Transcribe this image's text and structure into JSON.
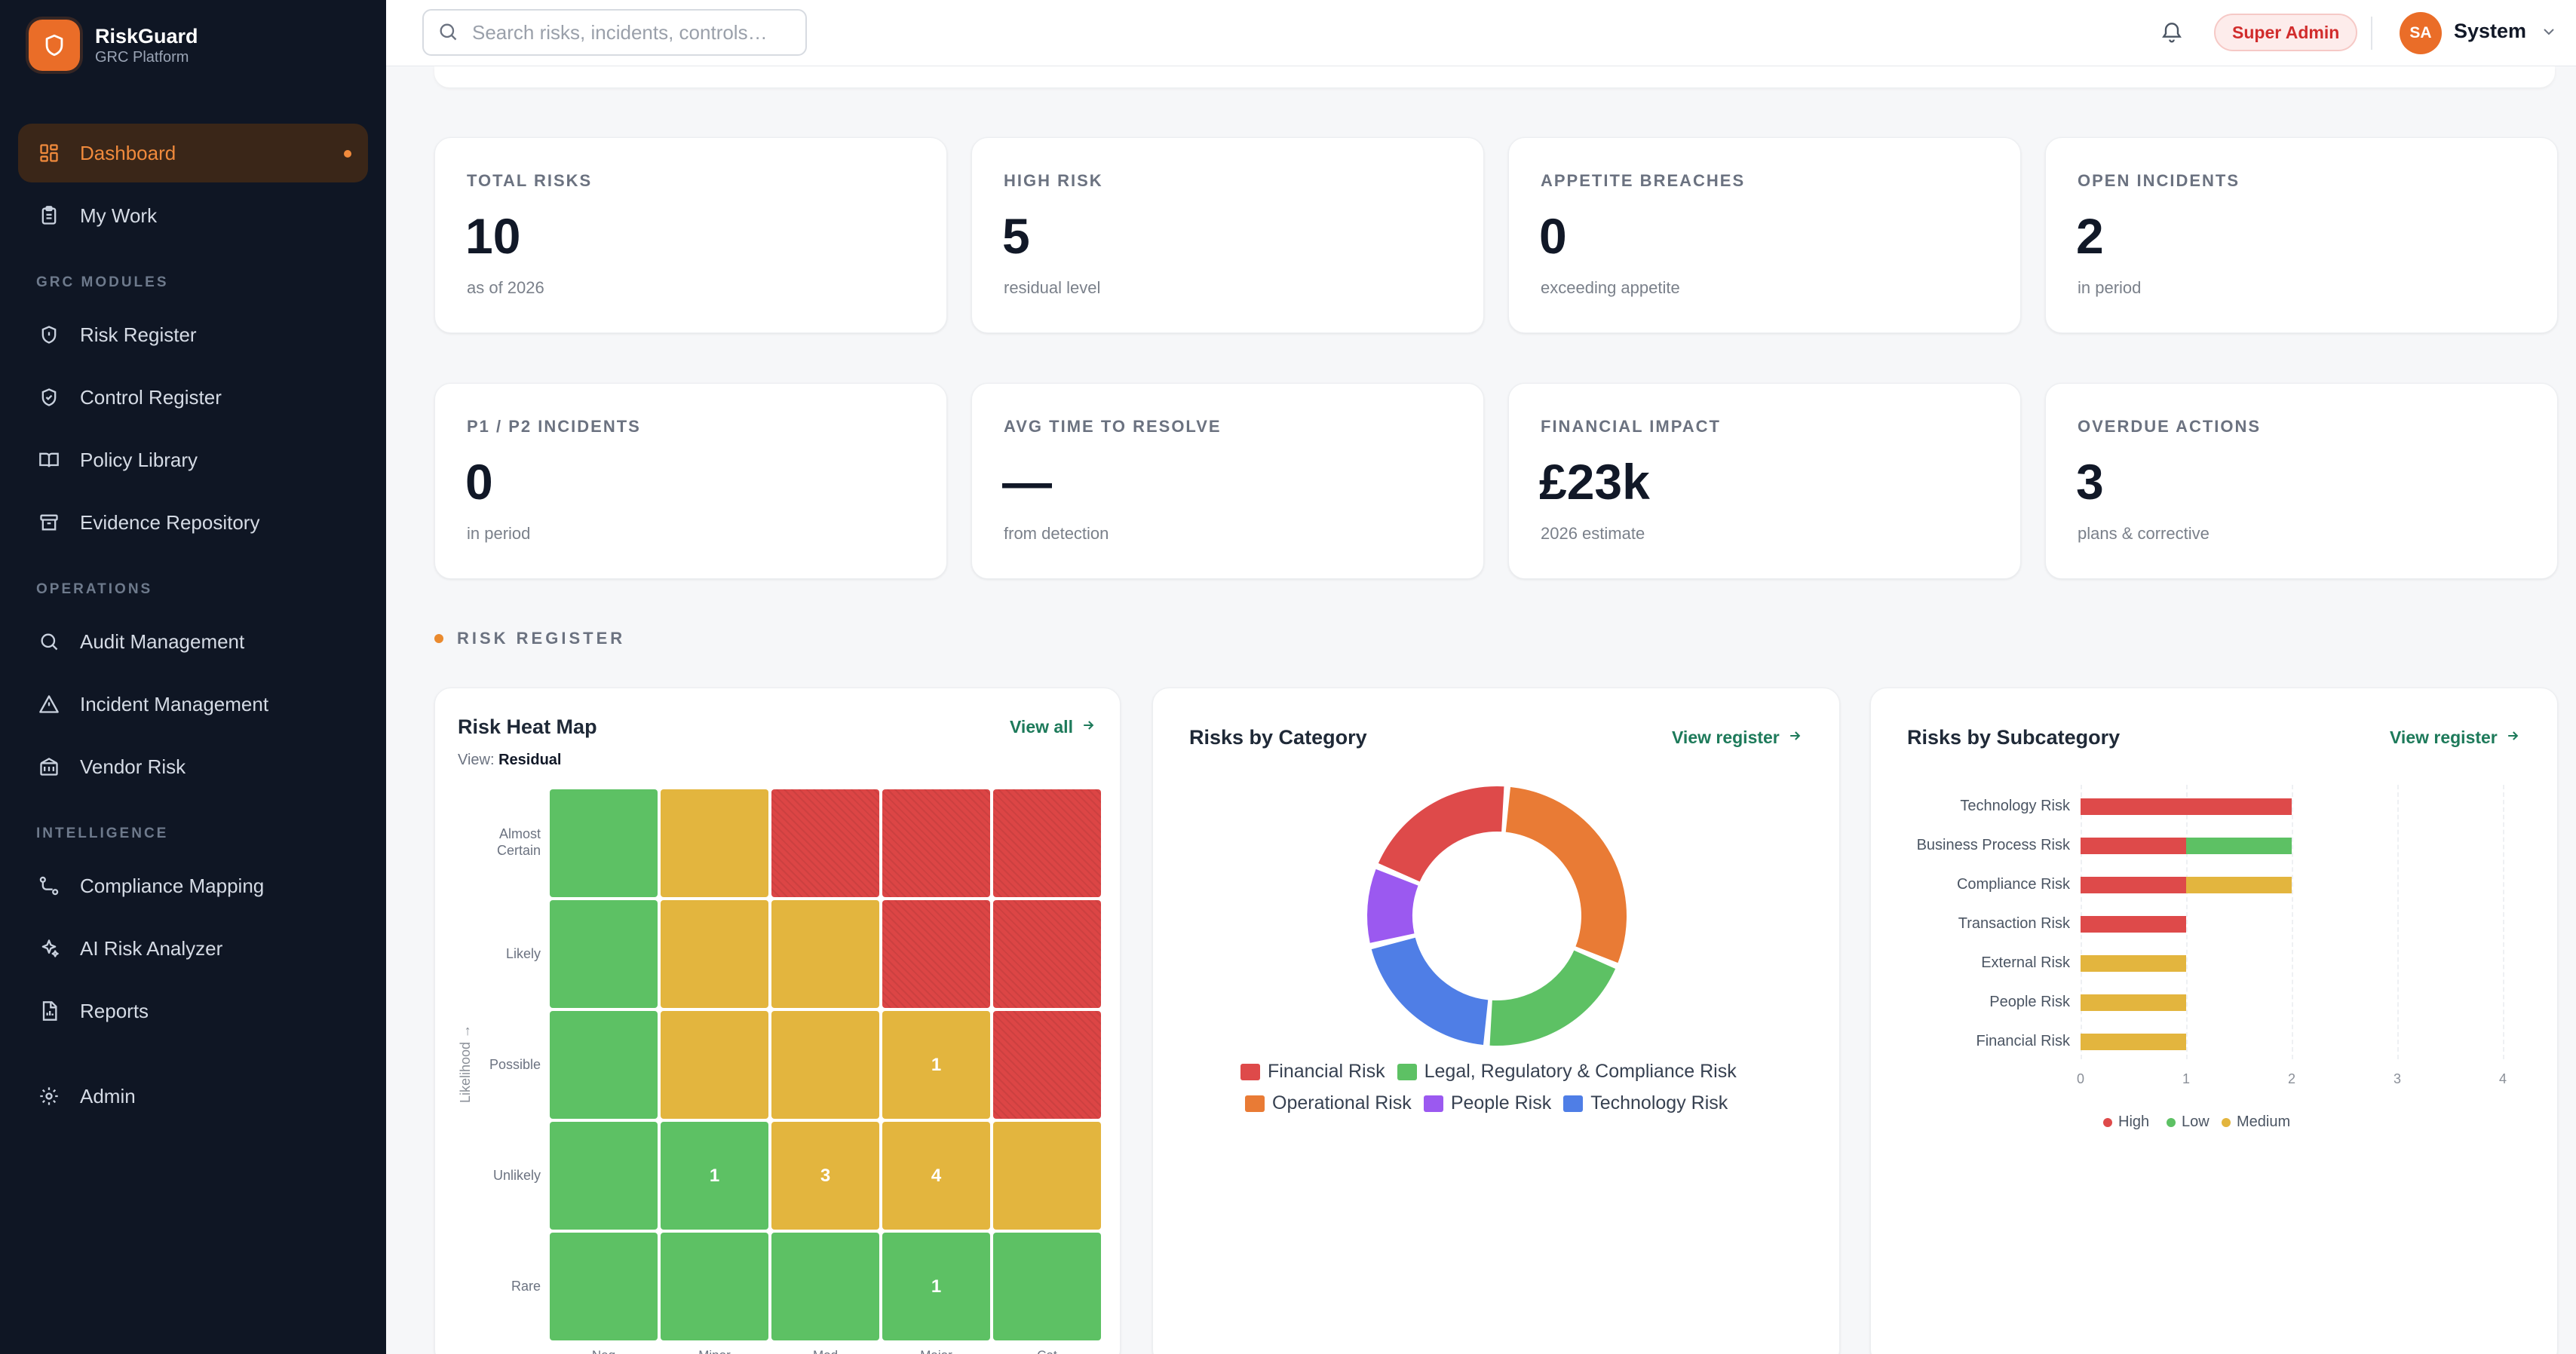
{
  "brand": {
    "name": "RiskGuard",
    "subtitle": "GRC Platform"
  },
  "nav": {
    "dashboard": "Dashboard",
    "my_work": "My Work",
    "section_grc": "GRC MODULES",
    "risk_register": "Risk Register",
    "control_register": "Control Register",
    "policy_library": "Policy Library",
    "evidence_repository": "Evidence Repository",
    "section_operations": "OPERATIONS",
    "audit_management": "Audit Management",
    "incident_management": "Incident Management",
    "vendor_risk": "Vendor Risk",
    "section_intelligence": "INTELLIGENCE",
    "compliance_mapping": "Compliance Mapping",
    "ai_risk_analyzer": "AI Risk Analyzer",
    "reports": "Reports",
    "admin": "Admin"
  },
  "topbar": {
    "search_placeholder": "Search risks, incidents, controls…",
    "role": "Super Admin",
    "avatar_initials": "SA",
    "user_name": "System"
  },
  "kpis": [
    {
      "label": "TOTAL RISKS",
      "value": "10",
      "sub": "as of 2026"
    },
    {
      "label": "HIGH RISK",
      "value": "5",
      "sub": "residual level"
    },
    {
      "label": "APPETITE BREACHES",
      "value": "0",
      "sub": "exceeding appetite"
    },
    {
      "label": "OPEN INCIDENTS",
      "value": "2",
      "sub": "in period"
    },
    {
      "label": "P1 / P2 INCIDENTS",
      "value": "0",
      "sub": "in period"
    },
    {
      "label": "AVG TIME TO RESOLVE",
      "value": "—",
      "sub": "from detection"
    },
    {
      "label": "FINANCIAL IMPACT",
      "value": "£23k",
      "sub": "2026 estimate"
    },
    {
      "label": "OVERDUE ACTIONS",
      "value": "3",
      "sub": "plans & corrective"
    }
  ],
  "section": {
    "risk_register": "RISK REGISTER"
  },
  "heatmap": {
    "title": "Risk Heat Map",
    "link": "View all",
    "view_label": "View:",
    "view_value": "Residual",
    "y_axis_title": "Likelihood →",
    "likelihood": [
      "Almost Certain",
      "Likely",
      "Possible",
      "Unlikely",
      "Rare"
    ],
    "impact": [
      "Neg",
      "Minor",
      "Mod",
      "Major",
      "Cat"
    ],
    "colors": [
      [
        "g",
        "y",
        "r",
        "r",
        "r"
      ],
      [
        "g",
        "y",
        "y",
        "r",
        "r"
      ],
      [
        "g",
        "y",
        "y",
        "y",
        "r"
      ],
      [
        "g",
        "g",
        "y",
        "y",
        "y"
      ],
      [
        "g",
        "g",
        "g",
        "g",
        "g"
      ]
    ],
    "counts": [
      [
        "",
        "",
        "",
        "",
        ""
      ],
      [
        "",
        "",
        "",
        "",
        ""
      ],
      [
        "",
        "",
        "",
        "1",
        ""
      ],
      [
        "",
        "1",
        "3",
        "4",
        ""
      ],
      [
        "",
        "",
        "",
        "1",
        ""
      ]
    ]
  },
  "category": {
    "title": "Risks by Category",
    "link": "View register",
    "chart_data": {
      "type": "pie",
      "labels": [
        "Operational Risk",
        "Legal, Regulatory & Compliance Risk",
        "Technology Risk",
        "People Risk",
        "Financial Risk"
      ],
      "values": [
        3,
        2,
        2,
        1,
        2
      ],
      "colors": [
        "#e97b35",
        "#5dc164",
        "#4f7ee6",
        "#9b59f0",
        "#de4a4a"
      ]
    },
    "legend": [
      {
        "label": "Financial Risk",
        "color": "#de4a4a"
      },
      {
        "label": "Legal, Regulatory & Compliance Risk",
        "color": "#5dc164"
      },
      {
        "label": "Operational Risk",
        "color": "#e97b35"
      },
      {
        "label": "People Risk",
        "color": "#9b59f0"
      },
      {
        "label": "Technology Risk",
        "color": "#4f7ee6"
      }
    ]
  },
  "subcategory": {
    "title": "Risks by Subcategory",
    "link": "View register",
    "chart_data": {
      "type": "bar",
      "orientation": "horizontal",
      "stacked": true,
      "categories": [
        "Technology Risk",
        "Business Process Risk",
        "Compliance Risk",
        "Transaction Risk",
        "External Risk",
        "People Risk",
        "Financial Risk"
      ],
      "series": [
        {
          "name": "High",
          "color": "#de4a4a",
          "values": [
            2,
            1,
            1,
            1,
            0,
            0,
            0
          ]
        },
        {
          "name": "Low",
          "color": "#5dc164",
          "values": [
            0,
            1,
            0,
            0,
            0,
            0,
            0
          ]
        },
        {
          "name": "Medium",
          "color": "#e3b53e",
          "values": [
            0,
            0,
            1,
            0,
            1,
            1,
            1
          ]
        }
      ],
      "xlim": [
        0,
        4
      ],
      "xticks": [
        "0",
        "1",
        "2",
        "3",
        "4"
      ],
      "legend": "bottom",
      "grid": true
    }
  }
}
